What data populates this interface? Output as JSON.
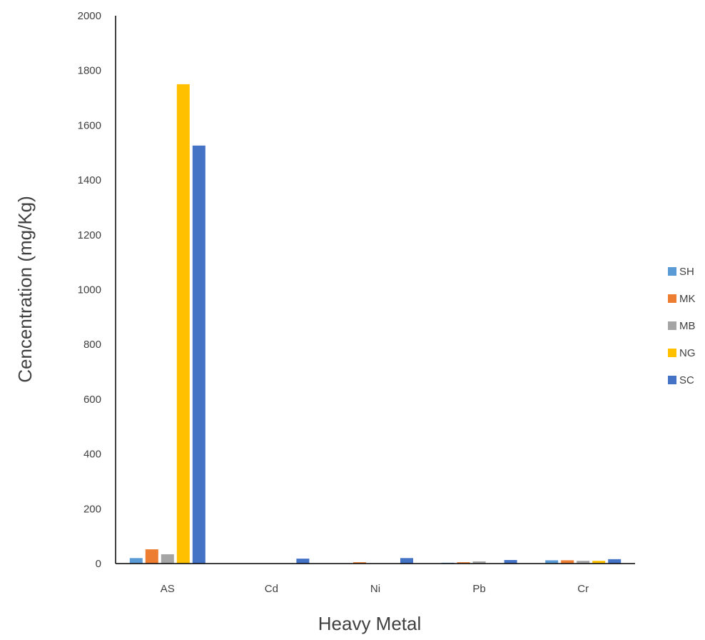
{
  "chart_data": {
    "type": "bar",
    "title": "",
    "xlabel": "Heavy Metal",
    "ylabel": "Cencentration (mg/Kg)",
    "categories": [
      "AS",
      "Cd",
      "Ni",
      "Pb",
      "Cr"
    ],
    "ylim": [
      0,
      2000
    ],
    "yticks": [
      0,
      200,
      400,
      600,
      800,
      1000,
      1200,
      1400,
      1600,
      1800,
      2000
    ],
    "grid": false,
    "legend_position": "right",
    "series": [
      {
        "name": "SH",
        "color": "#5B9BD5",
        "values": [
          20,
          0.5,
          1,
          3,
          12
        ]
      },
      {
        "name": "MK",
        "color": "#ED7D31",
        "values": [
          52,
          0.5,
          5,
          5,
          12
        ]
      },
      {
        "name": "MB",
        "color": "#A5A5A5",
        "values": [
          34,
          0.5,
          1,
          8,
          10
        ]
      },
      {
        "name": "NG",
        "color": "#FFC000",
        "values": [
          1750,
          0.5,
          1,
          1,
          10
        ]
      },
      {
        "name": "SC",
        "color": "#4472C4",
        "values": [
          1526,
          18,
          20,
          13,
          16
        ]
      }
    ]
  }
}
